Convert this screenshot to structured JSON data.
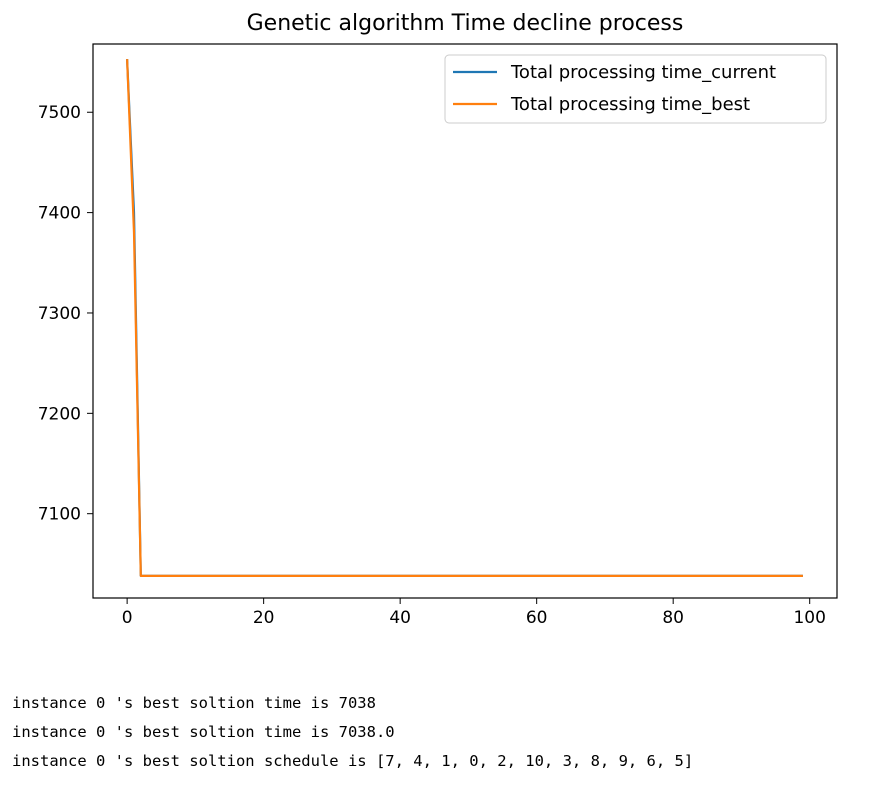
{
  "chart_data": {
    "type": "line",
    "title": "Genetic algorithm Time decline process",
    "xlabel": "",
    "ylabel": "",
    "xlim": [
      -5,
      104
    ],
    "ylim": [
      7016,
      7568
    ],
    "xticks": [
      0,
      20,
      40,
      60,
      80,
      100
    ],
    "yticks": [
      7100,
      7200,
      7300,
      7400,
      7500
    ],
    "grid": false,
    "legend_position": "top-right",
    "series": [
      {
        "name": "Total processing time_current",
        "color": "#1f77b4",
        "x": [
          0,
          1,
          2,
          99
        ],
        "y": [
          7553,
          7400,
          7038,
          7038
        ]
      },
      {
        "name": "Total processing time_best",
        "color": "#ff7f0e",
        "x": [
          0,
          1,
          2,
          99
        ],
        "y": [
          7553,
          7380,
          7038,
          7038
        ]
      }
    ]
  },
  "output": {
    "lines": [
      "instance 0 's best soltion time is 7038",
      "instance 0 's best soltion time is 7038.0",
      "instance 0 's best soltion schedule is [7, 4, 1, 0, 2, 10, 3, 8, 9, 6, 5]"
    ]
  }
}
